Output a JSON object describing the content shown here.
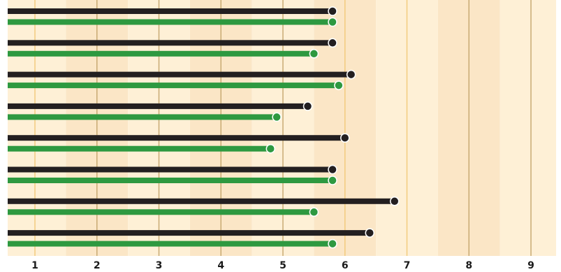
{
  "chart_data": {
    "type": "bar",
    "orientation": "horizontal",
    "grid": true,
    "x_ticks": [
      "1",
      "2",
      "3",
      "4",
      "5",
      "6",
      "7",
      "8",
      "9"
    ],
    "xlim": [
      0.55,
      9.4
    ],
    "series": [
      {
        "color": "#231f20",
        "values": [
          5.8,
          5.8,
          6.1,
          5.4,
          6.0,
          5.8,
          6.8,
          6.4
        ]
      },
      {
        "color": "#2e9940",
        "values": [
          5.8,
          5.5,
          5.9,
          4.9,
          4.8,
          5.8,
          5.5,
          5.8
        ]
      }
    ],
    "colors": {
      "band_light": "#fef0d6",
      "band_dark": "#fbe6c6",
      "grid_major": "#c8aa73",
      "grid_minor": "#f2cb7e"
    }
  }
}
